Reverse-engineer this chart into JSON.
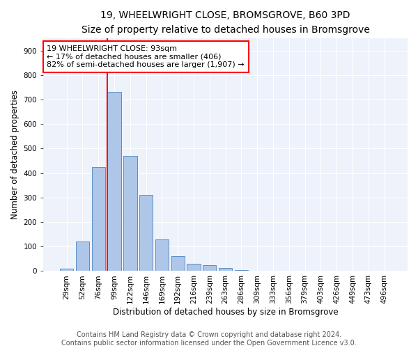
{
  "title1": "19, WHEELWRIGHT CLOSE, BROMSGROVE, B60 3PD",
  "title2": "Size of property relative to detached houses in Bromsgrove",
  "xlabel": "Distribution of detached houses by size in Bromsgrove",
  "ylabel": "Number of detached properties",
  "categories": [
    "29sqm",
    "52sqm",
    "76sqm",
    "99sqm",
    "122sqm",
    "146sqm",
    "169sqm",
    "192sqm",
    "216sqm",
    "239sqm",
    "263sqm",
    "286sqm",
    "309sqm",
    "333sqm",
    "356sqm",
    "379sqm",
    "403sqm",
    "426sqm",
    "449sqm",
    "473sqm",
    "496sqm"
  ],
  "values": [
    10,
    120,
    425,
    730,
    470,
    310,
    130,
    60,
    30,
    25,
    12,
    5,
    2,
    0,
    0,
    0,
    0,
    0,
    0,
    0,
    2
  ],
  "bar_color": "#aec6e8",
  "bar_edge_color": "#5a8fc4",
  "vline_x_index": 3,
  "vline_color": "red",
  "annotation_text": "19 WHEELWRIGHT CLOSE: 93sqm\n← 17% of detached houses are smaller (406)\n82% of semi-detached houses are larger (1,907) →",
  "annotation_box_color": "white",
  "annotation_box_edge": "red",
  "ylim": [
    0,
    950
  ],
  "yticks": [
    0,
    100,
    200,
    300,
    400,
    500,
    600,
    700,
    800,
    900
  ],
  "background_color": "#eef2fb",
  "footer1": "Contains HM Land Registry data © Crown copyright and database right 2024.",
  "footer2": "Contains public sector information licensed under the Open Government Licence v3.0.",
  "title1_fontsize": 10,
  "title2_fontsize": 9,
  "xlabel_fontsize": 8.5,
  "ylabel_fontsize": 8.5,
  "tick_fontsize": 7.5,
  "annotation_fontsize": 8,
  "footer_fontsize": 7
}
